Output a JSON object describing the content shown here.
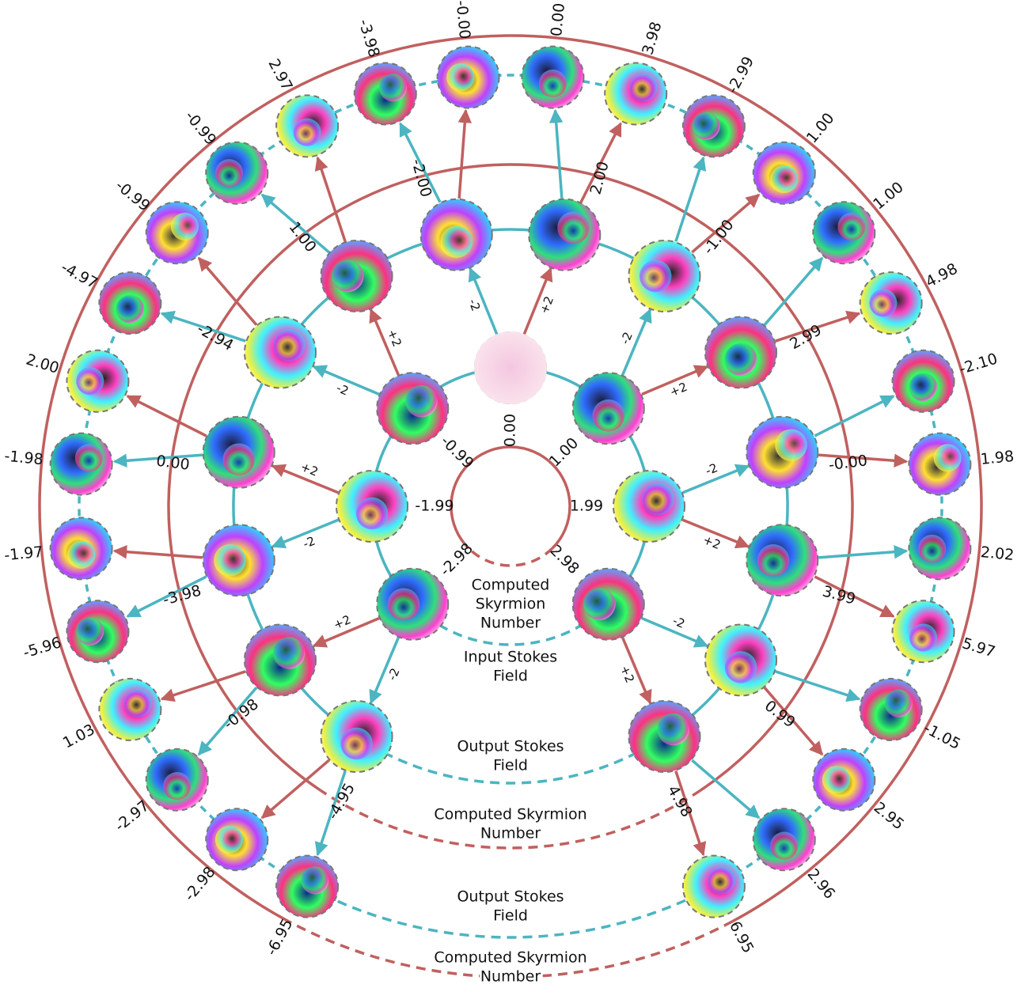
{
  "inner_ring": {
    "caption": [
      "Computed",
      "Skyrmion",
      "Number"
    ],
    "numbers": [
      "-2.98",
      "-1.99",
      "-0.99",
      "0.00",
      "1.00",
      "1.99",
      "2.98"
    ]
  },
  "input_ring": {
    "caption": [
      "Input Stokes",
      "Field"
    ],
    "transitions": [
      "-2",
      "+2",
      "-2",
      "+2",
      "-2",
      "+2",
      "-2",
      "+2",
      "-2",
      "+2",
      "-2",
      "+2",
      "-2",
      "+2"
    ]
  },
  "output_ring_1": {
    "caption": [
      "Output Stokes",
      "Field"
    ]
  },
  "skyrmion_ring_1": {
    "caption": [
      "Computed Skyrmion",
      "Number"
    ],
    "numbers": [
      "-4.95",
      "-0.98",
      "-3.98",
      "0.00",
      "-2.94",
      "1.00",
      "-2.00",
      "2.00",
      "-1.00",
      "2.99",
      "-0.00",
      "3.99",
      "0.99",
      "4.98"
    ]
  },
  "output_ring_2": {
    "caption": [
      "Output Stokes",
      "Field"
    ]
  },
  "skyrmion_ring_2": {
    "caption": [
      "Computed Skyrmion",
      "Number"
    ],
    "numbers": [
      "-6.95",
      "-2.98",
      "-2.97",
      "1.03",
      "-5.96",
      "-1.97",
      "-1.98",
      "2.00",
      "-4.97",
      "-0.99",
      "-0.99",
      "2.97",
      "-3.98",
      "-0.00",
      "0.00",
      "3.98",
      "-2.99",
      "1.00",
      "1.00",
      "4.98",
      "-2.10",
      "1.98",
      "2.02",
      "5.97",
      "-1.05",
      "2.95",
      "2.96",
      "6.95"
    ]
  },
  "colors": {
    "skyrmion": "#c0605f",
    "stokes": "#4bb5c1"
  }
}
